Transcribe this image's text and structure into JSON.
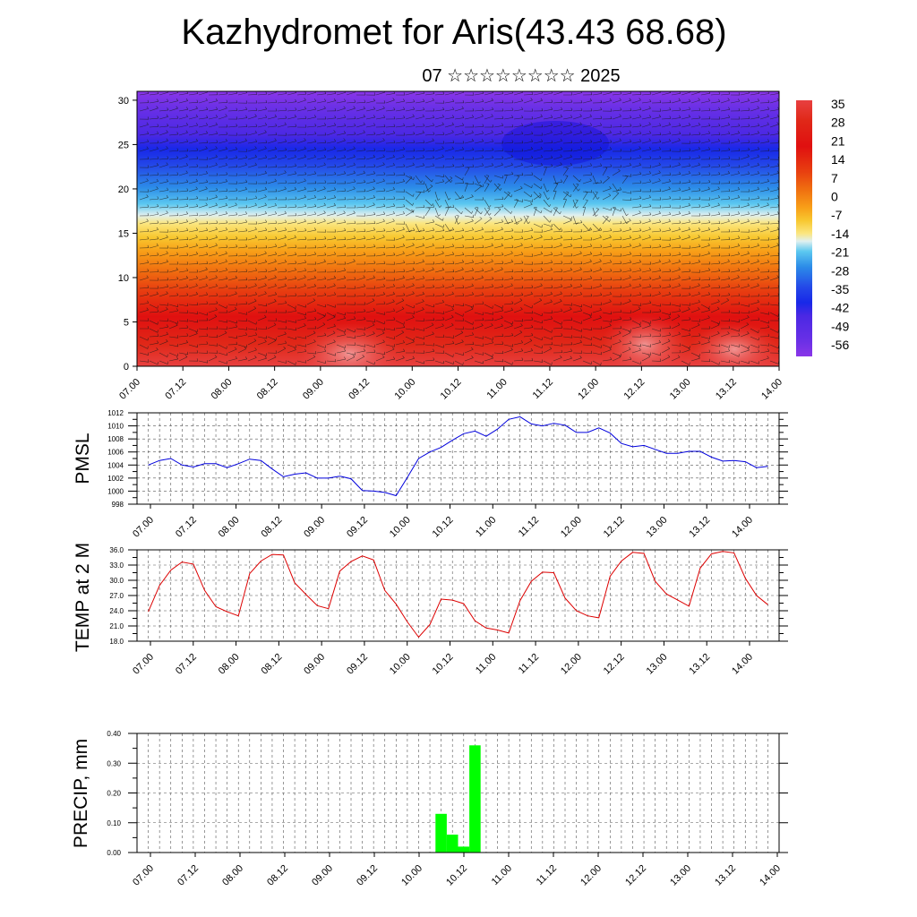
{
  "title": "Kazhydromet for Aris(43.43 68.68)",
  "subtitle": "07 ☆☆☆☆☆☆☆☆ 2025",
  "time_ticks": [
    "07.00",
    "07.12",
    "08.00",
    "08.12",
    "09.00",
    "09.12",
    "10.00",
    "10.12",
    "11.00",
    "11.12",
    "12.00",
    "12.12",
    "13.00",
    "13.12",
    "14.00"
  ],
  "chart_data": [
    {
      "type": "heatmap",
      "name": "temperature-height section with wind barbs",
      "x": [
        "07.00",
        "07.12",
        "08.00",
        "08.12",
        "09.00",
        "09.12",
        "10.00",
        "10.12",
        "11.00",
        "11.12",
        "12.00",
        "12.12",
        "13.00",
        "13.12",
        "14.00"
      ],
      "ylim": [
        0,
        31
      ],
      "yticks": [
        0,
        5,
        10,
        15,
        20,
        25,
        30
      ],
      "colorbar_labels": [
        "35",
        "28",
        "21",
        "14",
        "7",
        "0",
        "-7",
        "-14",
        "-21",
        "-28",
        "-35",
        "-42",
        "-49",
        "-56"
      ],
      "colorbar_colors": [
        "#f2a8a8",
        "#e83020",
        "#e81010",
        "#e84010",
        "#f07010",
        "#f8c010",
        "#fbe060",
        "#e0f0f8",
        "#40c0f0",
        "#2090e8",
        "#2050e8",
        "#3020e0",
        "#5010e0",
        "#8030e0"
      ]
    },
    {
      "type": "line",
      "ylabel": "PMSL",
      "ylim": [
        998,
        1012
      ],
      "yticks": [
        "998",
        "1000",
        "1002",
        "1004",
        "1006",
        "1008",
        "1010",
        "1012"
      ],
      "color": "#0000dd",
      "x": [
        0.5,
        1,
        1.5,
        2,
        2.5,
        3,
        3.5,
        4,
        4.5,
        5,
        5.5,
        6,
        6.5,
        7,
        7.5,
        8,
        8.5,
        9,
        9.5,
        10,
        10.5,
        11,
        11.5,
        12,
        12.5,
        13,
        13.5,
        14,
        14.5,
        15,
        15.5,
        16,
        16.5,
        17,
        17.5,
        18,
        18.5,
        19,
        19.5,
        20,
        20.5,
        21,
        21.5,
        22,
        22.5,
        23,
        23.5,
        24,
        24.5,
        25,
        25.5,
        26,
        26.5,
        27,
        27.5,
        28
      ],
      "values": [
        1004,
        1004.7,
        1005,
        1004,
        1003.7,
        1004.2,
        1004.2,
        1003.6,
        1004.2,
        1004.9,
        1004.7,
        1003.4,
        1002.2,
        1002.6,
        1002.8,
        1002,
        1002,
        1002.3,
        1001.9,
        1000.1,
        1000,
        999.8,
        999.3,
        1002.1,
        1005,
        1006,
        1006.7,
        1007.8,
        1008.8,
        1009.2,
        1008.4,
        1009.5,
        1011,
        1011.4,
        1010.3,
        1010,
        1010.4,
        1010.1,
        1009,
        1009,
        1009.7,
        1008.9,
        1007.3,
        1006.8,
        1007,
        1006.4,
        1005.8,
        1005.8,
        1006.1,
        1006.1,
        1005.2,
        1004.6,
        1004.7,
        1004.5,
        1003.6,
        1003.8
      ]
    },
    {
      "type": "line",
      "ylabel": "TEMP at 2 M",
      "ylim": [
        18,
        36
      ],
      "yticks": [
        "18.0",
        "21.0",
        "24.0",
        "27.0",
        "30.0",
        "33.0",
        "36.0"
      ],
      "color": "#dd0000",
      "x": [
        0.5,
        1,
        1.5,
        2,
        2.5,
        3,
        3.5,
        4,
        4.5,
        5,
        5.5,
        6,
        6.5,
        7,
        7.5,
        8,
        8.5,
        9,
        9.5,
        10,
        10.5,
        11,
        11.5,
        12,
        12.5,
        13,
        13.5,
        14,
        14.5,
        15,
        15.5,
        16,
        16.5,
        17,
        17.5,
        18,
        18.5,
        19,
        19.5,
        20,
        20.5,
        21,
        21.5,
        22,
        22.5,
        23,
        23.5,
        24,
        24.5,
        25,
        25.5,
        26,
        26.5,
        27,
        27.5,
        28
      ],
      "values": [
        23.8,
        29,
        32,
        33.6,
        33.2,
        28,
        24.8,
        23.8,
        23,
        31.3,
        33.8,
        35.1,
        35,
        29.5,
        27.2,
        25,
        24.4,
        31.8,
        33.7,
        34.8,
        34,
        28,
        25.3,
        21.8,
        18.8,
        21.3,
        26.3,
        26.1,
        25.4,
        22,
        20.6,
        20.2,
        19.6,
        26,
        29.8,
        31.6,
        31.5,
        26.5,
        24,
        23,
        22.6,
        30.8,
        33.8,
        35.5,
        35.3,
        29.8,
        27.3,
        26.1,
        24.9,
        32.4,
        35.2,
        35.7,
        35.4,
        30.4,
        27,
        25.2
      ]
    },
    {
      "type": "bar",
      "ylabel": "PRECIP, mm",
      "ylim": [
        0,
        0.4
      ],
      "yticks": [
        "0.00",
        "0.10",
        "0.20",
        "0.30",
        "0.40"
      ],
      "color": "#00ff00",
      "x": [
        13.5,
        14,
        14.5,
        15
      ],
      "values": [
        0.13,
        0.06,
        0.02,
        0.36
      ]
    }
  ]
}
